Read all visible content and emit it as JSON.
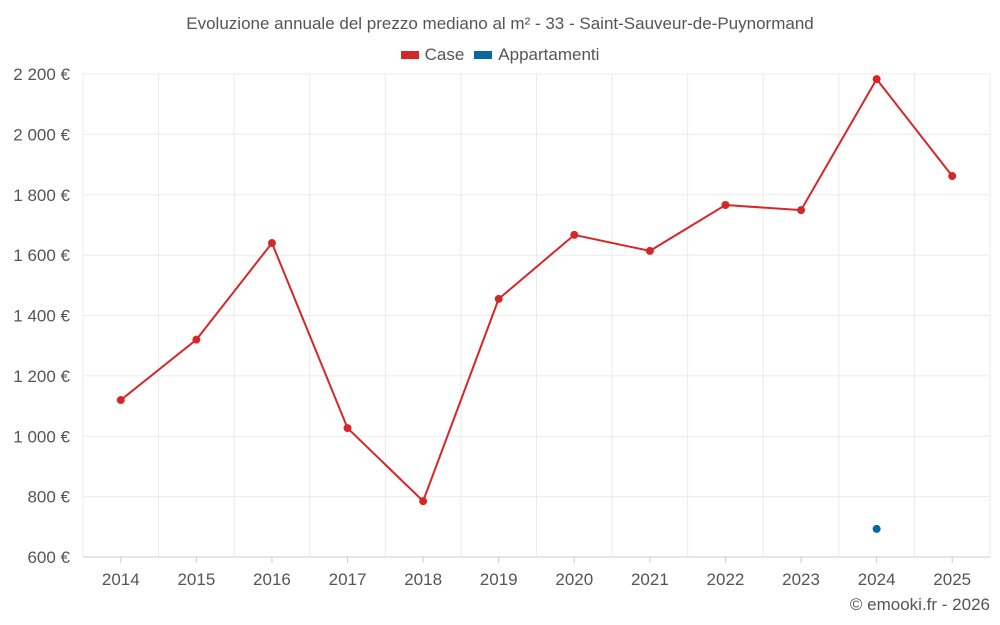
{
  "chart_data": {
    "type": "line",
    "title": "Evoluzione annuale del prezzo mediano al m² - 33 - Saint-Sauveur-de-Puynormand",
    "categories": [
      "2014",
      "2015",
      "2016",
      "2017",
      "2018",
      "2019",
      "2020",
      "2021",
      "2022",
      "2023",
      "2024",
      "2025"
    ],
    "series": [
      {
        "name": "Case",
        "color": "#d62728",
        "values": [
          1120,
          1320,
          1640,
          1027,
          785,
          1455,
          1667,
          1614,
          1766,
          1749,
          2183,
          1862
        ]
      },
      {
        "name": "Appartamenti",
        "color": "#0868a0",
        "values": [
          null,
          null,
          null,
          null,
          null,
          null,
          null,
          null,
          null,
          null,
          693,
          null
        ]
      }
    ],
    "yticks": [
      "600 €",
      "800 €",
      "1 000 €",
      "1 200 €",
      "1 400 €",
      "1 600 €",
      "1 800 €",
      "2 000 €",
      "2 200 €"
    ],
    "ylim": [
      600,
      2200
    ],
    "xlabel": "",
    "ylabel": "",
    "grid": true,
    "legend": "top-center"
  },
  "credit": "© emooki.fr - 2026"
}
